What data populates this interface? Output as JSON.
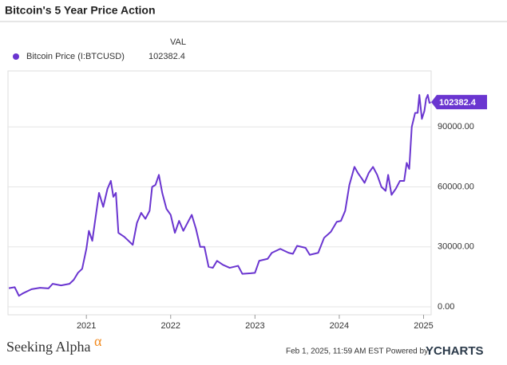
{
  "chart_data": {
    "type": "line",
    "title": "Bitcoin's 5 Year Price Action",
    "legend_header": "VAL",
    "series": [
      {
        "name": "Bitcoin Price (I:BTCUSD)",
        "color": "#6a35d0",
        "values": [
          9300,
          9800,
          5500,
          6800,
          8800,
          9500,
          9200,
          11500,
          10700,
          11500,
          13500,
          17000,
          19000,
          29000,
          38000,
          33000,
          48000,
          57000,
          50000,
          59000,
          63000,
          55000,
          57000,
          37000,
          35000,
          33000,
          31000,
          42000,
          47000,
          44000,
          48000,
          60000,
          61000,
          66000,
          57000,
          49000,
          46000,
          37000,
          43000,
          38000,
          46000,
          39000,
          30000,
          30000,
          20000,
          19500,
          23000,
          21000,
          19500,
          20500,
          16500,
          16800,
          17000,
          23000,
          24000,
          27000,
          29000,
          27000,
          26500,
          30500,
          29500,
          26000,
          27000,
          34500,
          37500,
          42500,
          43000,
          48000,
          61000,
          70000,
          67000,
          64000,
          62000,
          67000,
          70000,
          66000,
          60000,
          58000,
          66000,
          56000,
          59000,
          63000,
          63000,
          72000,
          69000,
          90000,
          97000,
          97000,
          106000,
          94000,
          98000,
          104000,
          106000,
          102000,
          102382.4
        ]
      }
    ],
    "x": [
      2020.08,
      2020.15,
      2020.2,
      2020.25,
      2020.35,
      2020.45,
      2020.55,
      2020.6,
      2020.7,
      2020.8,
      2020.85,
      2020.9,
      2020.95,
      2021.0,
      2021.03,
      2021.07,
      2021.12,
      2021.15,
      2021.2,
      2021.25,
      2021.29,
      2021.32,
      2021.35,
      2021.38,
      2021.45,
      2021.5,
      2021.55,
      2021.6,
      2021.65,
      2021.7,
      2021.75,
      2021.78,
      2021.82,
      2021.86,
      2021.9,
      2021.95,
      2022.0,
      2022.05,
      2022.1,
      2022.15,
      2022.25,
      2022.3,
      2022.35,
      2022.4,
      2022.45,
      2022.5,
      2022.55,
      2022.62,
      2022.7,
      2022.8,
      2022.85,
      2022.95,
      2023.0,
      2023.05,
      2023.15,
      2023.2,
      2023.3,
      2023.4,
      2023.45,
      2023.5,
      2023.6,
      2023.65,
      2023.75,
      2023.82,
      2023.9,
      2023.97,
      2024.02,
      2024.07,
      2024.12,
      2024.18,
      2024.22,
      2024.27,
      2024.3,
      2024.35,
      2024.4,
      2024.45,
      2024.5,
      2024.55,
      2024.58,
      2024.62,
      2024.67,
      2024.72,
      2024.77,
      2024.8,
      2024.83,
      2024.86,
      2024.9,
      2024.93,
      2024.95,
      2024.98,
      2025.01,
      2025.03,
      2025.05,
      2025.07,
      2025.085
    ],
    "xlim": [
      2020.07,
      2025.09
    ],
    "xticks": [
      2021,
      2022,
      2023,
      2024,
      2025
    ],
    "ylim": [
      -4000,
      118000
    ],
    "yticks": [
      {
        "value": 0,
        "label": "0.00"
      },
      {
        "value": 30000,
        "label": "30000.00"
      },
      {
        "value": 60000,
        "label": "60000.00"
      },
      {
        "value": 90000,
        "label": "90000.00"
      }
    ],
    "grid": true,
    "source_note": "Feb 1, 2025, 11:59 AM EST Powered by",
    "brand": "YCHARTS",
    "publisher": "Seeking Alpha",
    "publisher_mark": "α"
  }
}
